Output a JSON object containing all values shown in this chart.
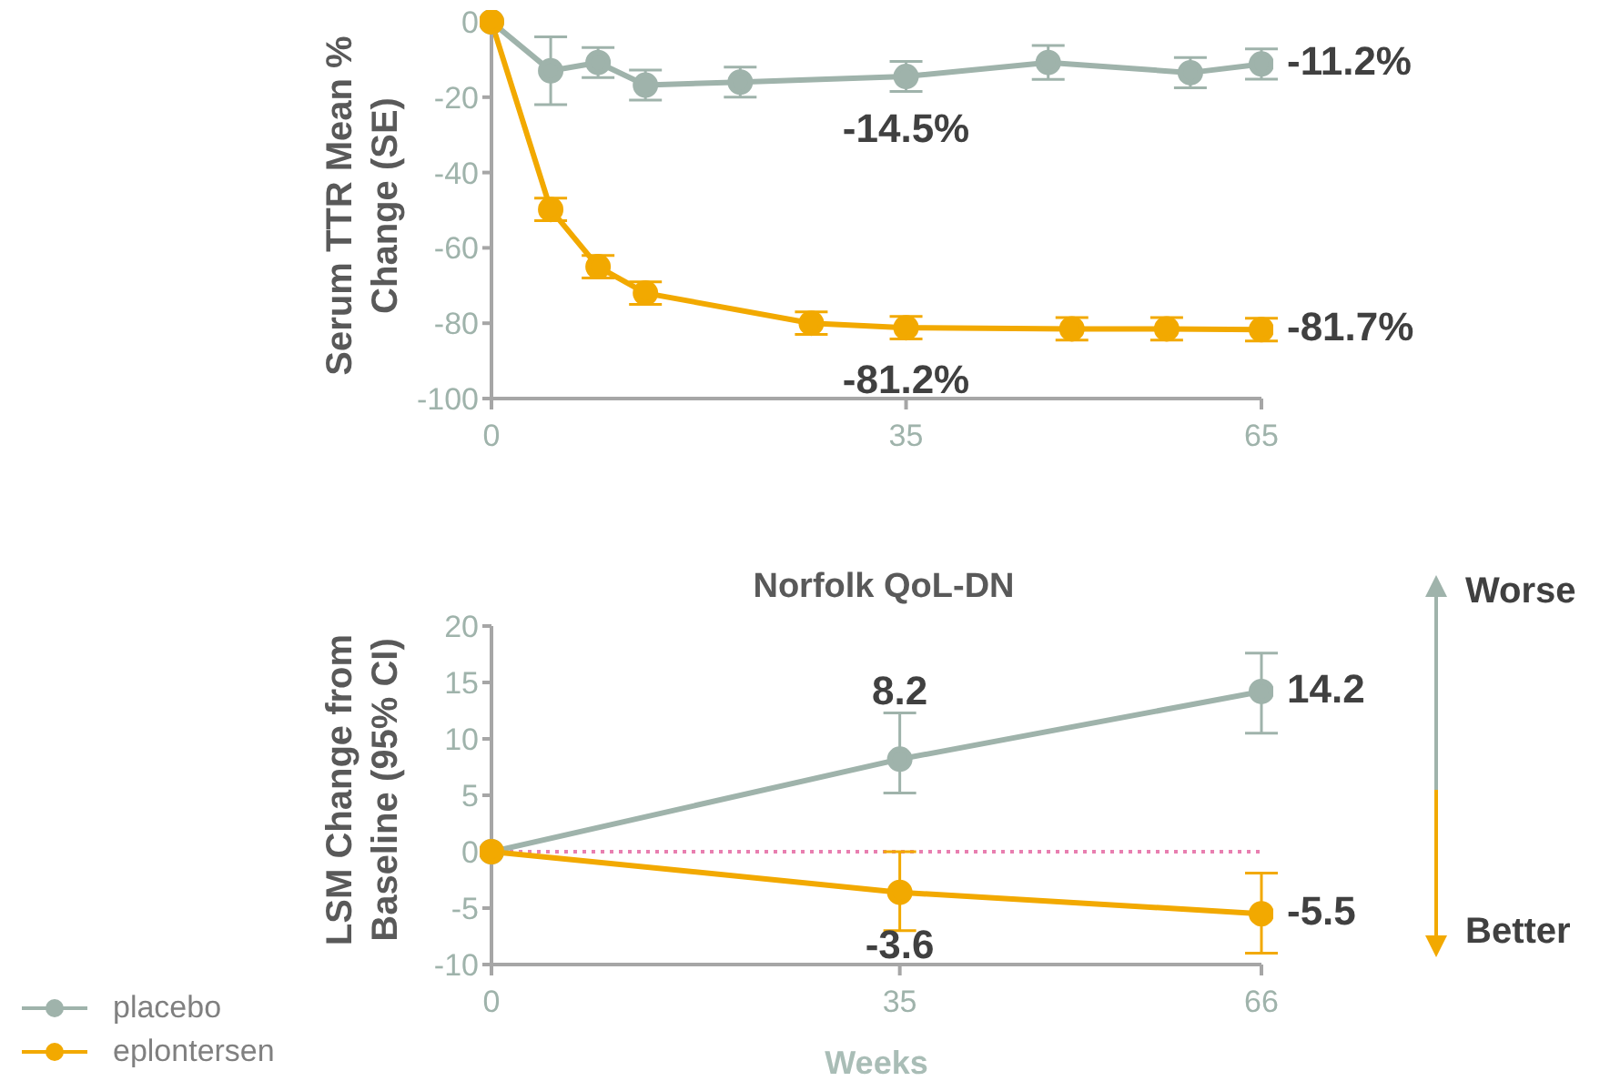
{
  "chart_data": [
    {
      "type": "line",
      "ylabel": "Serum TTR Mean % Change (SE)",
      "xlim": [
        0,
        65
      ],
      "xticks": [
        0,
        35,
        65
      ],
      "ylim": [
        -100,
        0
      ],
      "yticks": [
        0,
        -20,
        -40,
        -60,
        -80,
        -100
      ],
      "grid": false,
      "marker": "circle",
      "line_style": "solid",
      "series": [
        {
          "color": "#9fb3ab",
          "x": [
            0,
            5,
            9,
            13,
            21,
            35,
            47,
            59,
            65
          ],
          "values": [
            0,
            -13,
            -10.8,
            -16.8,
            -16,
            -14.5,
            -10.8,
            -13.5,
            -11.2
          ],
          "errors": [
            null,
            9,
            4,
            4,
            4,
            4,
            4.5,
            4,
            4
          ],
          "value_labels": [
            null,
            null,
            null,
            null,
            null,
            "-14.5%",
            null,
            null,
            "-11.2%"
          ]
        },
        {
          "color": "#f2a900",
          "x": [
            0,
            5,
            9,
            13,
            27,
            35,
            49,
            57,
            65
          ],
          "values": [
            0,
            -49.8,
            -65,
            -72,
            -80,
            -81.2,
            -81.5,
            -81.5,
            -81.7
          ],
          "errors": [
            null,
            3,
            3,
            3,
            3,
            3,
            3,
            3,
            3
          ],
          "value_labels": [
            null,
            null,
            null,
            null,
            null,
            "-81.2%",
            null,
            null,
            "-81.7%"
          ]
        }
      ]
    },
    {
      "type": "line",
      "title": "Norfolk QoL-DN",
      "xlabel": "Weeks",
      "ylabel": "LSM Change from Baseline (95% CI)",
      "xlim": [
        0,
        66
      ],
      "xticks": [
        0,
        35,
        66
      ],
      "ylim": [
        -10,
        20
      ],
      "yticks": [
        20,
        15,
        10,
        5,
        0,
        -5,
        -10
      ],
      "grid": false,
      "marker": "circle",
      "line_style": "solid",
      "legend": "bottom left",
      "annotations": [
        "Worse",
        "Better"
      ],
      "ref_lines": [
        {
          "axis": "y",
          "value": 0,
          "color": "#e87fb0",
          "line_style": "dotted"
        }
      ],
      "series": [
        {
          "name": "placebo",
          "color": "#9fb3ab",
          "x": [
            0,
            35,
            66
          ],
          "values": [
            0,
            8.2,
            14.2
          ],
          "errors": [
            null,
            [
              5.2,
              12.3
            ],
            [
              10.5,
              17.6
            ]
          ],
          "value_labels": [
            null,
            "8.2",
            "14.2"
          ]
        },
        {
          "name": "eplontersen",
          "color": "#f2a900",
          "x": [
            0,
            35,
            66
          ],
          "values": [
            0,
            -3.6,
            -5.5
          ],
          "errors": [
            null,
            [
              -7,
              0
            ],
            [
              -9,
              -1.9
            ]
          ],
          "value_labels": [
            null,
            "-3.6",
            "-5.5"
          ]
        }
      ]
    }
  ]
}
